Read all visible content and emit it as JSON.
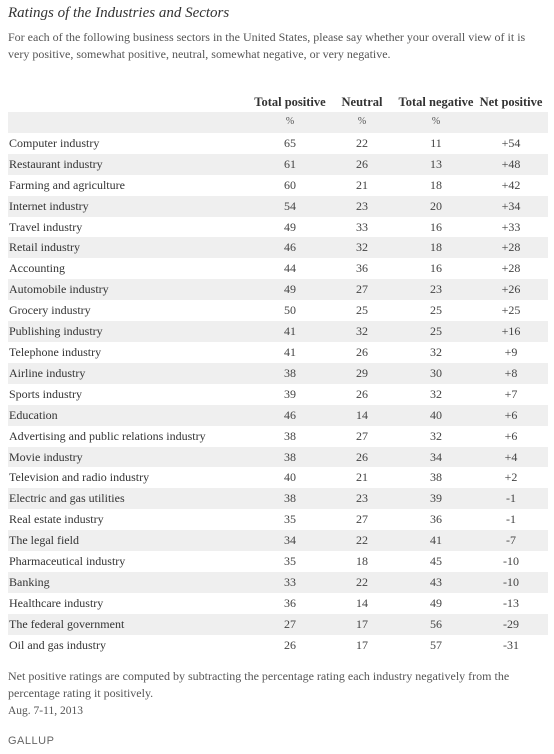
{
  "title": "Ratings of the Industries and Sectors",
  "subtitle": "For each of the following business sectors in the United States, please say whether your overall view of it is very positive, somewhat positive, neutral, somewhat negative, or very negative.",
  "columns": [
    "Total positive",
    "Neutral",
    "Total negative",
    "Net positive"
  ],
  "unit_row": [
    "%",
    "%",
    "%",
    ""
  ],
  "rows": [
    {
      "label": "Computer industry",
      "values": [
        "65",
        "22",
        "11",
        "+54"
      ]
    },
    {
      "label": "Restaurant industry",
      "values": [
        "61",
        "26",
        "13",
        "+48"
      ]
    },
    {
      "label": "Farming and agriculture",
      "values": [
        "60",
        "21",
        "18",
        "+42"
      ]
    },
    {
      "label": "Internet industry",
      "values": [
        "54",
        "23",
        "20",
        "+34"
      ]
    },
    {
      "label": "Travel industry",
      "values": [
        "49",
        "33",
        "16",
        "+33"
      ]
    },
    {
      "label": "Retail industry",
      "values": [
        "46",
        "32",
        "18",
        "+28"
      ]
    },
    {
      "label": "Accounting",
      "values": [
        "44",
        "36",
        "16",
        "+28"
      ]
    },
    {
      "label": "Automobile industry",
      "values": [
        "49",
        "27",
        "23",
        "+26"
      ]
    },
    {
      "label": "Grocery industry",
      "values": [
        "50",
        "25",
        "25",
        "+25"
      ]
    },
    {
      "label": "Publishing industry",
      "values": [
        "41",
        "32",
        "25",
        "+16"
      ]
    },
    {
      "label": "Telephone industry",
      "values": [
        "41",
        "26",
        "32",
        "+9"
      ]
    },
    {
      "label": "Airline industry",
      "values": [
        "38",
        "29",
        "30",
        "+8"
      ]
    },
    {
      "label": "Sports industry",
      "values": [
        "39",
        "26",
        "32",
        "+7"
      ]
    },
    {
      "label": "Education",
      "values": [
        "46",
        "14",
        "40",
        "+6"
      ]
    },
    {
      "label": "Advertising and public relations industry",
      "values": [
        "38",
        "27",
        "32",
        "+6"
      ]
    },
    {
      "label": "Movie industry",
      "values": [
        "38",
        "26",
        "34",
        "+4"
      ]
    },
    {
      "label": "Television and radio industry",
      "values": [
        "40",
        "21",
        "38",
        "+2"
      ]
    },
    {
      "label": "Electric and gas utilities",
      "values": [
        "38",
        "23",
        "39",
        "-1"
      ]
    },
    {
      "label": "Real estate industry",
      "values": [
        "35",
        "27",
        "36",
        "-1"
      ]
    },
    {
      "label": "The legal field",
      "values": [
        "34",
        "22",
        "41",
        "-7"
      ]
    },
    {
      "label": "Pharmaceutical industry",
      "values": [
        "35",
        "18",
        "45",
        "-10"
      ]
    },
    {
      "label": "Banking",
      "values": [
        "33",
        "22",
        "43",
        "-10"
      ]
    },
    {
      "label": "Healthcare industry",
      "values": [
        "36",
        "14",
        "49",
        "-13"
      ]
    },
    {
      "label": "The federal government",
      "values": [
        "27",
        "17",
        "56",
        "-29"
      ]
    },
    {
      "label": "Oil and gas industry",
      "values": [
        "26",
        "17",
        "57",
        "-31"
      ]
    }
  ],
  "note": "Net positive ratings are computed by subtracting the percentage rating each industry negatively from the percentage rating it positively.",
  "date": "Aug. 7-11, 2013",
  "logo": "GALLUP",
  "colors": {
    "stripe": "#efefef",
    "text": "#333333"
  }
}
